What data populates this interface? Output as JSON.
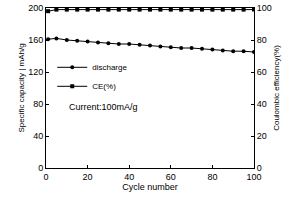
{
  "chart_data": {
    "type": "line",
    "x_label": "Cycle number",
    "y_label": "Specific capacity | mAh/g",
    "y2_label": "Coulombic efficiency(%)",
    "annotation": "Current:100mA/g",
    "x": [
      1,
      5,
      10,
      15,
      20,
      25,
      30,
      35,
      40,
      45,
      50,
      55,
      60,
      65,
      70,
      75,
      80,
      85,
      90,
      95,
      100
    ],
    "series": [
      {
        "name": "discharge",
        "color": "#000000",
        "marker": "circle",
        "axis": "y",
        "values": [
          161,
          162,
          160,
          159,
          158,
          157,
          156,
          155,
          155,
          154,
          153,
          152,
          151,
          150,
          150,
          149,
          148,
          147,
          146,
          146,
          145
        ]
      },
      {
        "name": "CE(%)",
        "color": "#000000",
        "marker": "square",
        "axis": "y2",
        "values": [
          98,
          99,
          99,
          99,
          99,
          99,
          99,
          99,
          99,
          99,
          99,
          99,
          99,
          99,
          99,
          99,
          99,
          99,
          99,
          99,
          99
        ]
      }
    ],
    "xlim": [
      0,
      100
    ],
    "xticks": [
      0,
      20,
      40,
      60,
      80,
      100
    ],
    "ylim": [
      0,
      200
    ],
    "yticks": [
      0,
      40,
      80,
      120,
      160,
      200
    ],
    "y2lim": [
      0,
      100
    ],
    "y2ticks": [
      0,
      20,
      40,
      60,
      80,
      100
    ],
    "legend": "left",
    "grid": false
  }
}
